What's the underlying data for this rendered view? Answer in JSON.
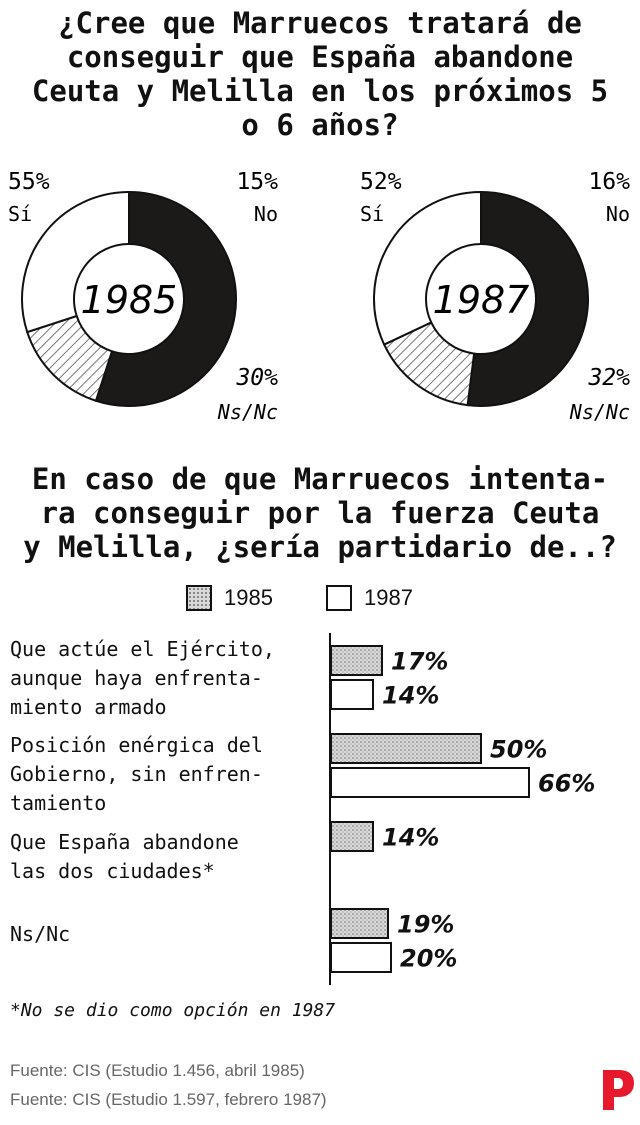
{
  "title1_lines": [
    "¿Cree que Marruecos tratará de",
    "conseguir que España abandone",
    "Ceuta y Melilla en los próximos 5",
    "o 6 años?"
  ],
  "title2_lines": [
    "En caso de que Marruecos intenta-",
    "ra conseguir por la fuerza Ceuta",
    "y Melilla, ¿sería partidario de..?"
  ],
  "footnote": "*No se dio como opción en 1987",
  "sources": [
    "Fuente: CIS (Estudio 1.456, abril 1985)",
    "Fuente: CIS (Estudio 1.597, febrero 1987)"
  ],
  "colors": {
    "si": "#1c1a19",
    "no_hatch": "#555555",
    "nsnc": "#ffffff",
    "stroke": "#111111",
    "logo": "#e6192d",
    "source_text": "#666666"
  },
  "icons": {
    "logo": "publico-p-logo"
  },
  "chart_data": [
    {
      "type": "pie",
      "center_label": "1985",
      "slices": [
        {
          "label": "Sí",
          "value": 55,
          "value_label": "55%"
        },
        {
          "label": "No",
          "value": 15,
          "value_label": "15%"
        },
        {
          "label": "Ns/Nc",
          "value": 30,
          "value_label": "30%"
        }
      ]
    },
    {
      "type": "pie",
      "center_label": "1987",
      "slices": [
        {
          "label": "Sí",
          "value": 52,
          "value_label": "52%"
        },
        {
          "label": "No",
          "value": 16,
          "value_label": "16%"
        },
        {
          "label": "Ns/Nc",
          "value": 32,
          "value_label": "32%"
        }
      ]
    },
    {
      "type": "bar",
      "orientation": "horizontal",
      "legend": [
        "1985",
        "1987"
      ],
      "categories": [
        [
          "Que actúe el Ejército,",
          "aunque haya enfrenta-",
          "miento armado"
        ],
        [
          "Posición enérgica del",
          "Gobierno, sin enfren-",
          "tamiento"
        ],
        [
          "Que España abandone",
          "las dos ciudades*"
        ],
        [
          "Ns/Nc"
        ]
      ],
      "series": [
        {
          "name": "1985",
          "values": [
            17,
            50,
            14,
            19
          ],
          "value_labels": [
            "17%",
            "50%",
            "14%",
            "19%"
          ]
        },
        {
          "name": "1987",
          "values": [
            14,
            66,
            null,
            20
          ],
          "value_labels": [
            "14%",
            "66%",
            "",
            "20%"
          ]
        }
      ]
    }
  ]
}
